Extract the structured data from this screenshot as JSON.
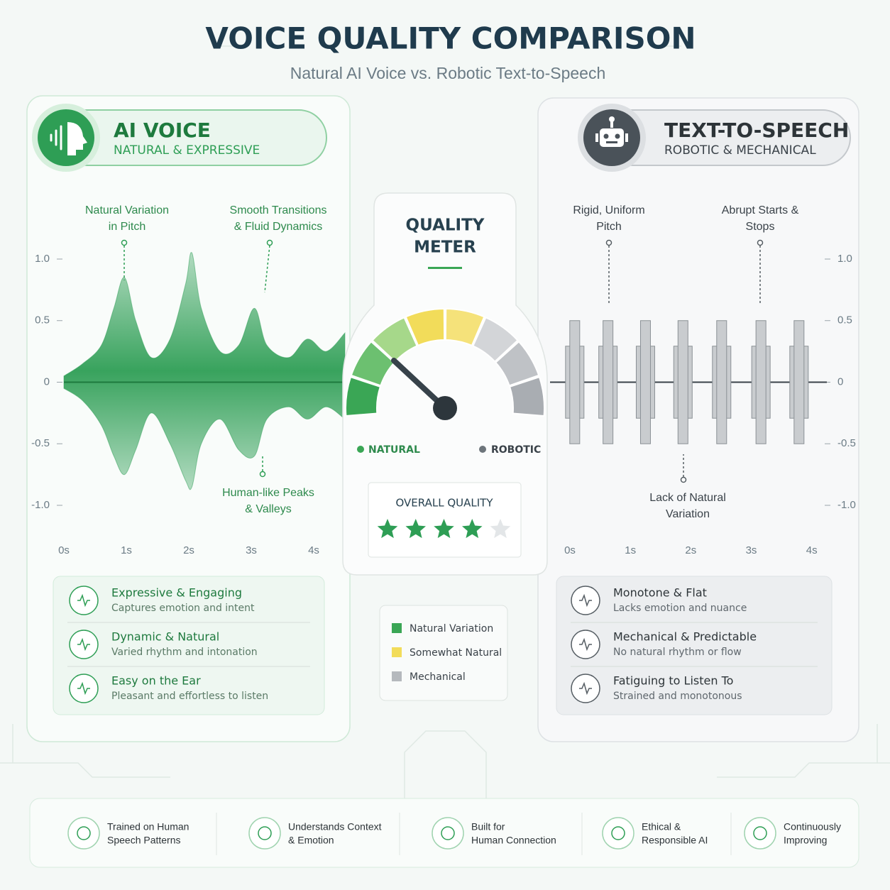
{
  "header": {
    "title": "VOICE QUALITY COMPARISON",
    "subtitle": "Natural AI Voice vs. Robotic Text-to-Speech"
  },
  "ai_panel": {
    "title": "AI VOICE",
    "subtitle": "NATURAL & EXPRESSIVE",
    "annotations": [
      {
        "lines": [
          "Natural Variation",
          "in Pitch"
        ]
      },
      {
        "lines": [
          "Smooth Transitions",
          "& Fluid Dynamics"
        ]
      },
      {
        "lines": [
          "Human-like Peaks",
          "& Valleys"
        ]
      }
    ],
    "chart": {
      "type": "area",
      "color": "#2e9e55",
      "x": [
        0,
        0.3,
        0.6,
        0.8,
        0.97,
        1.15,
        1.4,
        1.7,
        1.95,
        2.05,
        2.2,
        2.5,
        2.8,
        3.05,
        3.25,
        3.6,
        3.9,
        4.2,
        4.5
      ],
      "upper": [
        0.05,
        0.15,
        0.3,
        0.6,
        0.85,
        0.5,
        0.2,
        0.35,
        0.8,
        1.05,
        0.6,
        0.25,
        0.3,
        0.6,
        0.3,
        0.2,
        0.35,
        0.25,
        0.4
      ],
      "lower": [
        -0.05,
        -0.15,
        -0.35,
        -0.6,
        -0.75,
        -0.55,
        -0.25,
        -0.5,
        -0.8,
        -0.85,
        -0.5,
        -0.3,
        -0.55,
        -0.6,
        -0.3,
        -0.2,
        -0.3,
        -0.2,
        -0.3
      ],
      "xlim": [
        0,
        4.5
      ],
      "ylim": [
        -1,
        1
      ],
      "xticks": [
        {
          "value": 0,
          "label": "0s"
        },
        {
          "value": 1,
          "label": "1s"
        },
        {
          "value": 2,
          "label": "2s"
        },
        {
          "value": 3,
          "label": "3s"
        },
        {
          "value": 4,
          "label": "4s"
        }
      ],
      "yticks": [
        {
          "value": 1,
          "label": "1.0"
        },
        0.5,
        0,
        -0.5,
        {
          "value": -1,
          "label": "-1.0"
        }
      ]
    },
    "features": [
      {
        "title": "Expressive & Engaging",
        "desc": "Captures emotion and intent"
      },
      {
        "title": "Dynamic & Natural",
        "desc": "Varied rhythm and intonation"
      },
      {
        "title": "Easy on the Ear",
        "desc": "Pleasant and effortless to listen"
      }
    ]
  },
  "tts_panel": {
    "title": "TEXT-TO-SPEECH",
    "subtitle": "ROBOTIC & MECHANICAL",
    "annotations": [
      {
        "lines": [
          "Rigid, Uniform",
          "Pitch"
        ]
      },
      {
        "lines": [
          "Abrupt Starts &",
          "Stops"
        ]
      },
      {
        "lines": [
          "Lack of Natural",
          "Variation"
        ]
      }
    ],
    "chart": {
      "type": "pulses",
      "color": "#c9cccf",
      "x": [
        0.08,
        0.63,
        1.25,
        1.87,
        2.51,
        3.16,
        3.79
      ],
      "high": [
        0.5,
        0.5,
        0.5,
        0.5,
        0.5,
        0.5,
        0.5
      ],
      "low": [
        -0.5,
        -0.5,
        -0.5,
        -0.5,
        -0.5,
        -0.5,
        -0.5
      ],
      "xlim": [
        0,
        4.25
      ],
      "ylim": [
        -1,
        1
      ],
      "xticks": [
        {
          "value": 0,
          "label": "0s"
        },
        {
          "value": 1,
          "label": "1s"
        },
        {
          "value": 2,
          "label": "2s"
        },
        {
          "value": 3,
          "label": "3s"
        },
        {
          "value": 4,
          "label": "4s"
        }
      ],
      "yticks": [
        {
          "value": 1,
          "label": "1.0"
        },
        0.5,
        0,
        -0.5,
        {
          "value": -1,
          "label": "-1.0"
        }
      ]
    },
    "features": [
      {
        "title": "Monotone & Flat",
        "desc": "Lacks emotion and nuance"
      },
      {
        "title": "Mechanical & Predictable",
        "desc": "No natural rhythm or flow"
      },
      {
        "title": "Fatiguing to Listen To",
        "desc": "Strained and monotonous"
      }
    ]
  },
  "meter": {
    "title_lines": [
      "QUALITY",
      "METER"
    ],
    "left_label": "NATURAL",
    "right_label": "ROBOTIC",
    "overall_label": "OVERALL QUALITY",
    "rating": 4,
    "max_rating": 5,
    "legend": [
      {
        "name": "Natural Variation",
        "color": "#3aa655"
      },
      {
        "name": "Somewhat Natural",
        "color": "#f2dc5a"
      },
      {
        "name": "Mechanical",
        "color": "#b5b9bd"
      }
    ]
  },
  "footer": [
    {
      "lines": [
        "Trained on Human",
        "Speech Patterns"
      ]
    },
    {
      "lines": [
        "Understands Context",
        "& Emotion"
      ]
    },
    {
      "lines": [
        "Built for",
        "Human Connection"
      ]
    },
    {
      "lines": [
        "Ethical &",
        "Responsible AI"
      ]
    },
    {
      "lines": [
        "Continuously",
        "Improving"
      ]
    }
  ]
}
